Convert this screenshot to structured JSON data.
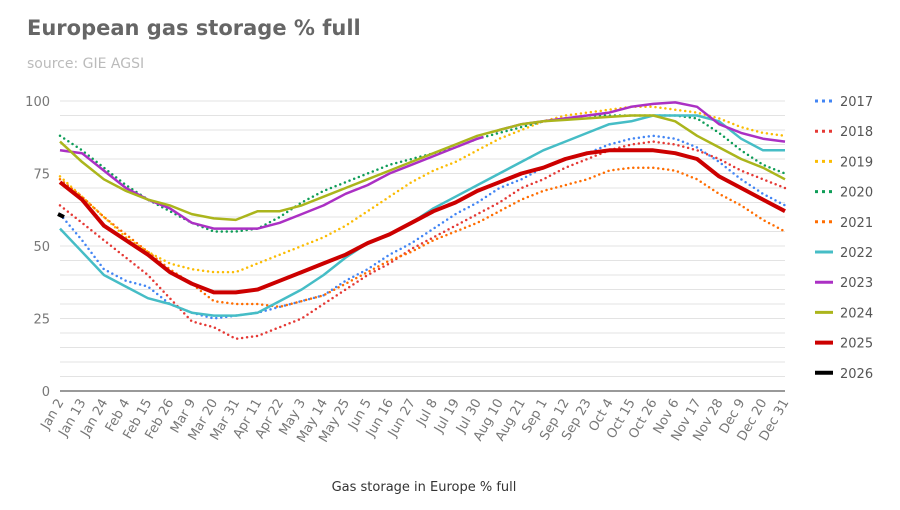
{
  "chart_data": {
    "type": "line",
    "title": "European gas storage % full",
    "subtitle": "source: GIE AGSI",
    "xlabel": "Gas storage in Europe % full",
    "ylabel": "",
    "ylim": [
      0,
      100
    ],
    "y_ticks": [
      0,
      25,
      50,
      75,
      100
    ],
    "grid": true,
    "legend_position": "right",
    "x_ticks": [
      "Jan 2",
      "Jan 13",
      "Jan 24",
      "Feb 4",
      "Feb 15",
      "Feb 26",
      "Mar 9",
      "Mar 20",
      "Mar 31",
      "Apr 11",
      "Apr 22",
      "May 3",
      "May 14",
      "May 25",
      "Jun 5",
      "Jun 16",
      "Jun 27",
      "Jul 8",
      "Jul 19",
      "Jul 30",
      "Aug 10",
      "Aug 21",
      "Sep 1",
      "Sep 12",
      "Sep 23",
      "Oct 4",
      "Oct 15",
      "Oct 26",
      "Nov 6",
      "Nov 17",
      "Nov 28",
      "Dec 9",
      "Dec 20",
      "Dec 31"
    ],
    "series": [
      {
        "name": "2017",
        "color": "#4285f4",
        "style": "dotted",
        "values": [
          61,
          52,
          42,
          38,
          36,
          30,
          27,
          25,
          26,
          27,
          29,
          31,
          33,
          38,
          42,
          47,
          51,
          56,
          61,
          65,
          70,
          73,
          77,
          80,
          82,
          85,
          87,
          88,
          87,
          84,
          79,
          73,
          68,
          64
        ]
      },
      {
        "name": "2018",
        "color": "#e53935",
        "style": "dotted",
        "values": [
          64,
          58,
          52,
          46,
          40,
          32,
          24,
          22,
          18,
          19,
          22,
          25,
          30,
          35,
          40,
          44,
          49,
          53,
          57,
          61,
          65,
          70,
          73,
          77,
          80,
          83,
          85,
          86,
          85,
          83,
          80,
          76,
          73,
          70
        ]
      },
      {
        "name": "2019",
        "color": "#fbbc04",
        "style": "dotted",
        "values": [
          74,
          67,
          60,
          53,
          48,
          44,
          42,
          41,
          41,
          44,
          47,
          50,
          53,
          57,
          62,
          67,
          72,
          76,
          79,
          83,
          87,
          90,
          93,
          95,
          96,
          97,
          98,
          98,
          97,
          96,
          94,
          91,
          89,
          88
        ]
      },
      {
        "name": "2020",
        "color": "#0f9d58",
        "style": "dotted",
        "values": [
          88,
          83,
          77,
          71,
          66,
          62,
          58,
          55,
          55,
          56,
          60,
          65,
          69,
          72,
          75,
          78,
          80,
          82,
          84,
          87,
          89,
          91,
          93,
          94,
          95,
          95,
          95,
          95,
          95,
          94,
          89,
          83,
          78,
          75
        ]
      },
      {
        "name": "2021",
        "color": "#ff6d01",
        "style": "dotted",
        "values": [
          73,
          67,
          60,
          54,
          48,
          42,
          37,
          31,
          30,
          30,
          29,
          31,
          33,
          37,
          41,
          45,
          48,
          52,
          55,
          58,
          62,
          66,
          69,
          71,
          73,
          76,
          77,
          77,
          76,
          73,
          68,
          64,
          59,
          55
        ]
      },
      {
        "name": "2022",
        "color": "#46bdc6",
        "style": "solid",
        "values": [
          56,
          48,
          40,
          36,
          32,
          30,
          27,
          26,
          26,
          27,
          31,
          35,
          40,
          46,
          51,
          54,
          58,
          63,
          67,
          71,
          75,
          79,
          83,
          86,
          89,
          92,
          93,
          95,
          95,
          95,
          93,
          87,
          83,
          83
        ]
      },
      {
        "name": "2023",
        "color": "#ab30c4",
        "style": "solid",
        "values": [
          83,
          82,
          76,
          70,
          66,
          63,
          58,
          56,
          56,
          56,
          58,
          61,
          64,
          68,
          71,
          75,
          78,
          81,
          84,
          87,
          90,
          92,
          93,
          94,
          95,
          96,
          98,
          99,
          99.5,
          98,
          92,
          89,
          87,
          86
        ],
        "gap_after": "Jul 30"
      },
      {
        "name": "2024",
        "color": "#abb51c",
        "style": "solid",
        "values": [
          86,
          79,
          73,
          69,
          66,
          64,
          61,
          59.5,
          59,
          62,
          62,
          64,
          67,
          70,
          73,
          76,
          79,
          82,
          85,
          88,
          90,
          92,
          93,
          93.5,
          94,
          94.5,
          95,
          95,
          93,
          88,
          84,
          80,
          77,
          73
        ]
      },
      {
        "name": "2025",
        "color": "#cc0000",
        "style": "thick",
        "values": [
          72,
          66,
          57,
          52,
          47,
          41,
          37,
          34,
          34,
          35,
          38,
          41,
          44,
          47,
          51,
          54,
          58,
          62,
          65,
          69,
          72,
          75,
          77,
          80,
          82,
          83,
          83,
          83,
          82,
          80,
          74,
          70,
          66,
          62
        ]
      },
      {
        "name": "2026",
        "color": "#000000",
        "style": "thick",
        "points": [
          [
            "Jan 1",
            61
          ],
          [
            "Jan 4",
            60
          ]
        ]
      }
    ]
  }
}
